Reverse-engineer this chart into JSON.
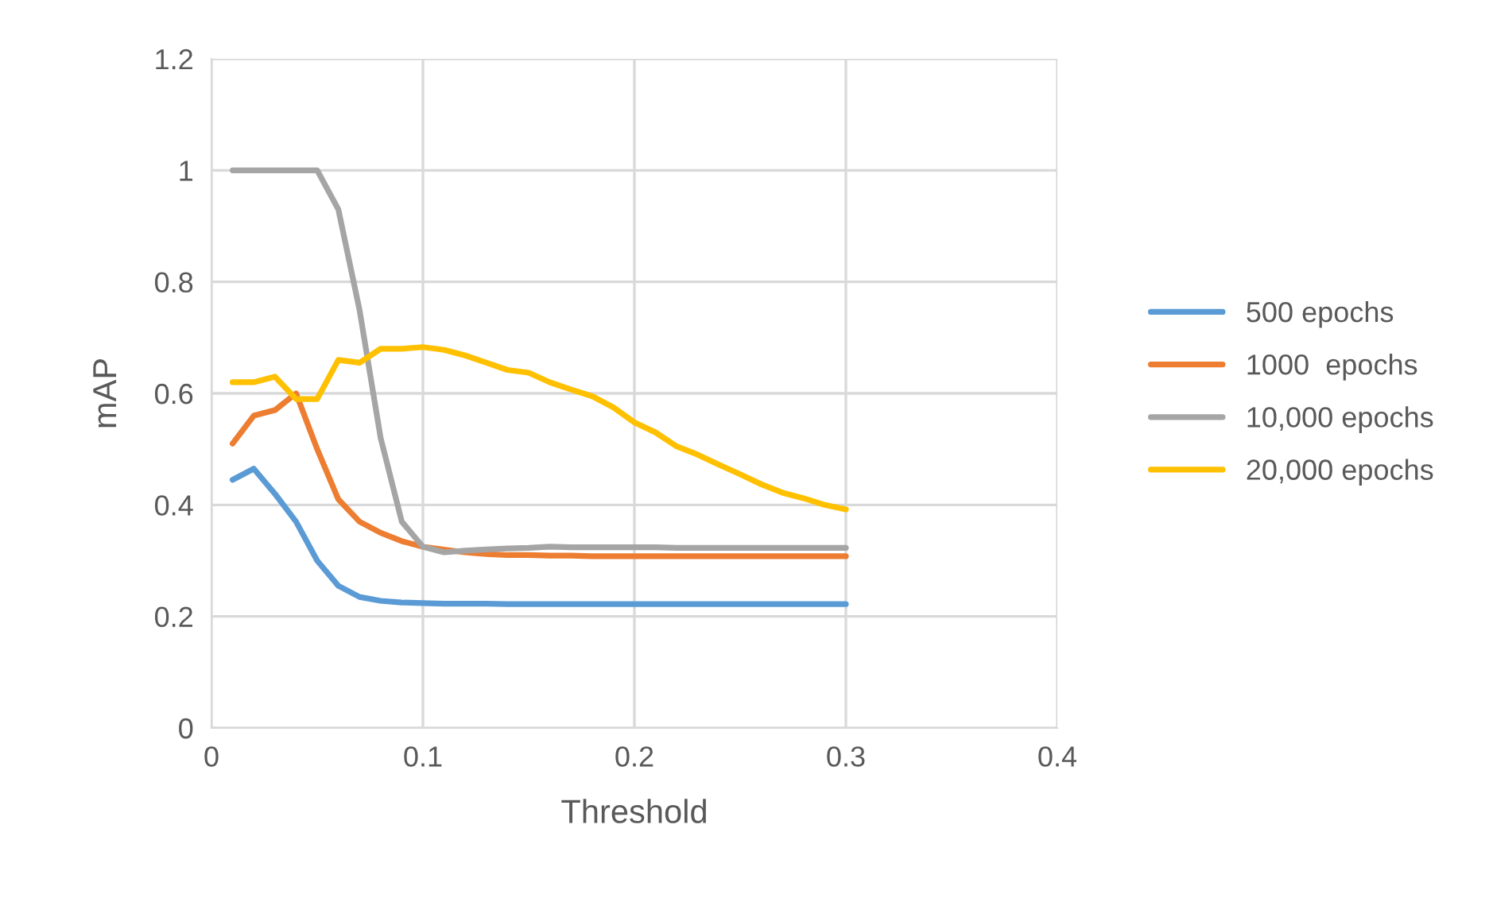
{
  "chart_data": {
    "type": "line",
    "xlabel": "Threshold",
    "ylabel": "mAP",
    "x": [
      0.01,
      0.02,
      0.03,
      0.04,
      0.05,
      0.06,
      0.07,
      0.08,
      0.09,
      0.1,
      0.11,
      0.12,
      0.13,
      0.14,
      0.15,
      0.16,
      0.17,
      0.18,
      0.19,
      0.2,
      0.21,
      0.22,
      0.23,
      0.24,
      0.25,
      0.26,
      0.27,
      0.28,
      0.29,
      0.3
    ],
    "series": [
      {
        "name": "500 epochs",
        "color": "#5b9bd5",
        "values": [
          0.445,
          0.465,
          0.42,
          0.37,
          0.3,
          0.255,
          0.235,
          0.228,
          0.225,
          0.224,
          0.223,
          0.223,
          0.223,
          0.222,
          0.222,
          0.222,
          0.222,
          0.222,
          0.222,
          0.222,
          0.222,
          0.222,
          0.222,
          0.222,
          0.222,
          0.222,
          0.222,
          0.222,
          0.222,
          0.222
        ]
      },
      {
        "name": "1000  epochs",
        "color": "#ed7d31",
        "values": [
          0.51,
          0.56,
          0.57,
          0.6,
          0.5,
          0.41,
          0.37,
          0.35,
          0.335,
          0.325,
          0.32,
          0.315,
          0.312,
          0.31,
          0.31,
          0.309,
          0.309,
          0.308,
          0.308,
          0.308,
          0.308,
          0.308,
          0.308,
          0.308,
          0.308,
          0.308,
          0.308,
          0.308,
          0.308,
          0.308
        ]
      },
      {
        "name": "10,000 epochs",
        "color": "#a5a5a5",
        "values": [
          1.0,
          1.0,
          1.0,
          1.0,
          1.0,
          0.93,
          0.75,
          0.52,
          0.37,
          0.325,
          0.315,
          0.318,
          0.32,
          0.322,
          0.323,
          0.325,
          0.324,
          0.324,
          0.324,
          0.324,
          0.324,
          0.323,
          0.323,
          0.323,
          0.323,
          0.323,
          0.323,
          0.323,
          0.323,
          0.323
        ]
      },
      {
        "name": "20,000 epochs",
        "color": "#ffc000",
        "values": [
          0.62,
          0.62,
          0.63,
          0.59,
          0.59,
          0.66,
          0.655,
          0.68,
          0.68,
          0.683,
          0.678,
          0.668,
          0.655,
          0.642,
          0.637,
          0.62,
          0.607,
          0.595,
          0.575,
          0.548,
          0.53,
          0.505,
          0.49,
          0.472,
          0.455,
          0.437,
          0.422,
          0.412,
          0.4,
          0.392
        ]
      }
    ],
    "xlim": [
      0,
      0.4
    ],
    "xticks": [
      0,
      0.1,
      0.2,
      0.3,
      0.4
    ],
    "ylim": [
      0,
      1.2
    ],
    "yticks": [
      0,
      0.2,
      0.4,
      0.6,
      0.8,
      1,
      1.2
    ],
    "grid": true,
    "legend": "right"
  }
}
